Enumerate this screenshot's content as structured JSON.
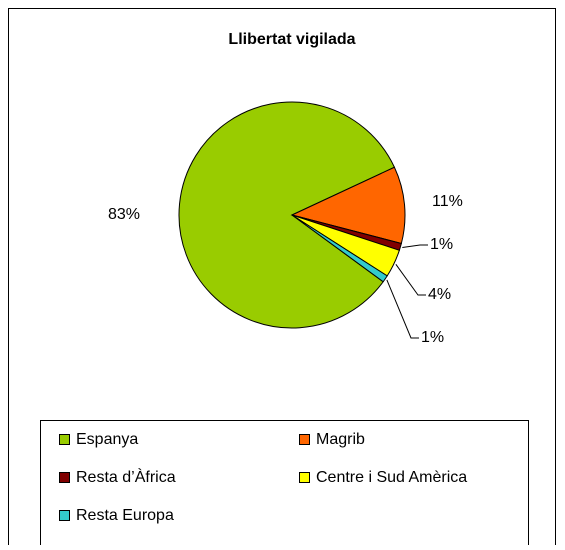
{
  "chart_data": {
    "type": "pie",
    "title": "Llibertat vigilada",
    "categories": [
      "Espanya",
      "Magrib",
      "Resta d’Àfrica",
      "Centre i Sud Amèrica",
      "Resta Europa"
    ],
    "values": [
      83,
      11,
      1,
      4,
      1
    ],
    "value_labels": [
      "83%",
      "11%",
      "1%",
      "4%",
      "1%"
    ],
    "colors": [
      "#99cc00",
      "#ff6600",
      "#800000",
      "#ffff00",
      "#33cccc"
    ],
    "legend": "bottom"
  }
}
